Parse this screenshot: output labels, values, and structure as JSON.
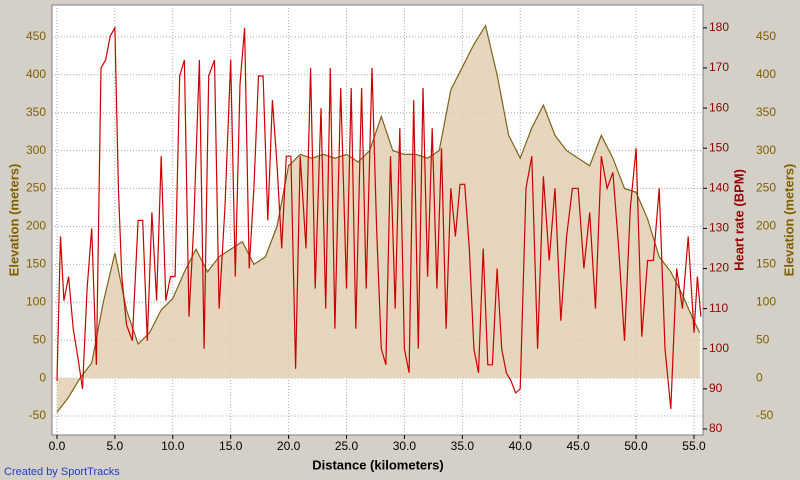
{
  "chart_data": {
    "type": "line",
    "xlabel": "Distance (kilometers)",
    "ylabel": "Elevation (meters)",
    "y2label": "Heart rate (BPM)",
    "credit": "Created by SportTracks",
    "xlim": [
      -0.43,
      55.78
    ],
    "ylim": [
      -75,
      492
    ],
    "y2lim": [
      78.5,
      185.7
    ],
    "grid": true,
    "xticks": [
      {
        "value": 0,
        "label": "0.0"
      },
      {
        "value": 5,
        "label": "5.0"
      },
      {
        "value": 10,
        "label": "10.0"
      },
      {
        "value": 15,
        "label": "15.0"
      },
      {
        "value": 20,
        "label": "20.0"
      },
      {
        "value": 25,
        "label": "25.0"
      },
      {
        "value": 30,
        "label": "30.0"
      },
      {
        "value": 35,
        "label": "35.0"
      },
      {
        "value": 40,
        "label": "40.0"
      },
      {
        "value": 45,
        "label": "45.0"
      },
      {
        "value": 50,
        "label": "50.0"
      },
      {
        "value": 55,
        "label": "55.0"
      }
    ],
    "yticks": [
      -50,
      0,
      50,
      100,
      150,
      200,
      250,
      300,
      350,
      400,
      450
    ],
    "y2ticks": [
      80,
      90,
      100,
      110,
      120,
      130,
      140,
      150,
      160,
      170,
      180
    ],
    "series": [
      {
        "name": "Elevation",
        "fill": true,
        "color": "#80621b",
        "fill_color": "#e0cfb1",
        "x": [
          0,
          1,
          2,
          3,
          4,
          5,
          6,
          7,
          8,
          9,
          10,
          11,
          12,
          13,
          14,
          15,
          16,
          17,
          18,
          19,
          20,
          21,
          22,
          23,
          24,
          25,
          26,
          27,
          28,
          29,
          30,
          31,
          32,
          33,
          34,
          35,
          36,
          37,
          38,
          39,
          40,
          41,
          42,
          43,
          44,
          45,
          46,
          47,
          48,
          49,
          50,
          51,
          52,
          53,
          54,
          55,
          55.5
        ],
        "values": [
          -45,
          -25,
          0,
          20,
          100,
          165,
          90,
          45,
          60,
          90,
          105,
          140,
          170,
          140,
          160,
          170,
          180,
          150,
          160,
          200,
          280,
          295,
          290,
          295,
          290,
          295,
          285,
          300,
          345,
          300,
          295,
          295,
          290,
          300,
          380,
          410,
          440,
          465,
          400,
          320,
          290,
          330,
          360,
          320,
          300,
          290,
          280,
          320,
          290,
          250,
          245,
          210,
          160,
          140,
          110,
          75,
          60
        ]
      },
      {
        "name": "Heart rate",
        "fill": false,
        "axis": "y2",
        "color": "#cc0000",
        "x": [
          0,
          0.3,
          0.6,
          1,
          1.4,
          1.8,
          2.2,
          2.6,
          3,
          3.4,
          3.8,
          4.2,
          4.6,
          5,
          5.3,
          5.6,
          6,
          6.5,
          7,
          7.4,
          7.8,
          8.2,
          8.6,
          9,
          9.4,
          9.8,
          10.2,
          10.6,
          11,
          11.4,
          11.8,
          12.3,
          12.7,
          13.1,
          13.6,
          14,
          14.5,
          15,
          15.4,
          15.8,
          16.2,
          16.6,
          17,
          17.4,
          17.8,
          18.2,
          18.6,
          19,
          19.4,
          19.8,
          20.2,
          20.6,
          21,
          21.5,
          21.9,
          22.3,
          22.8,
          23.2,
          23.6,
          24,
          24.5,
          25,
          25.4,
          25.8,
          26.3,
          26.7,
          27.2,
          27.6,
          28,
          28.4,
          28.8,
          29.2,
          29.6,
          30,
          30.4,
          30.8,
          31.2,
          31.6,
          32,
          32.4,
          32.8,
          33.2,
          33.6,
          34,
          34.4,
          34.8,
          35.2,
          35.6,
          36,
          36.4,
          36.8,
          37.2,
          37.6,
          38,
          38.4,
          38.8,
          39.2,
          39.6,
          40,
          40.5,
          41,
          41.5,
          42,
          42.5,
          43,
          43.5,
          44,
          44.5,
          45,
          45.5,
          46,
          46.5,
          47,
          47.5,
          48,
          48.5,
          49,
          49.5,
          50,
          50.5,
          51,
          51.5,
          52,
          52.5,
          53,
          53.5,
          54,
          54.5,
          55,
          55.3,
          55.6
        ],
        "values": [
          92,
          128,
          112,
          118,
          105,
          98,
          90,
          115,
          130,
          96,
          170,
          172,
          178,
          180,
          140,
          118,
          106,
          102,
          132,
          132,
          102,
          134,
          112,
          148,
          112,
          118,
          118,
          168,
          172,
          108,
          130,
          172,
          100,
          168,
          172,
          110,
          135,
          172,
          118,
          166,
          180,
          120,
          140,
          168,
          168,
          132,
          162,
          146,
          125,
          148,
          148,
          95,
          148,
          125,
          170,
          115,
          160,
          110,
          170,
          105,
          165,
          115,
          165,
          105,
          165,
          115,
          170,
          130,
          100,
          96,
          148,
          110,
          155,
          100,
          94,
          162,
          100,
          165,
          118,
          155,
          115,
          150,
          105,
          140,
          128,
          141,
          141,
          125,
          100,
          94,
          125,
          96,
          96,
          120,
          100,
          94,
          92,
          89,
          90,
          140,
          148,
          100,
          143,
          122,
          140,
          107,
          128,
          140,
          140,
          120,
          134,
          110,
          148,
          140,
          144,
          125,
          102,
          135,
          150,
          103,
          122,
          122,
          140,
          100,
          85,
          120,
          110,
          128,
          104,
          118,
          108
        ]
      }
    ]
  }
}
